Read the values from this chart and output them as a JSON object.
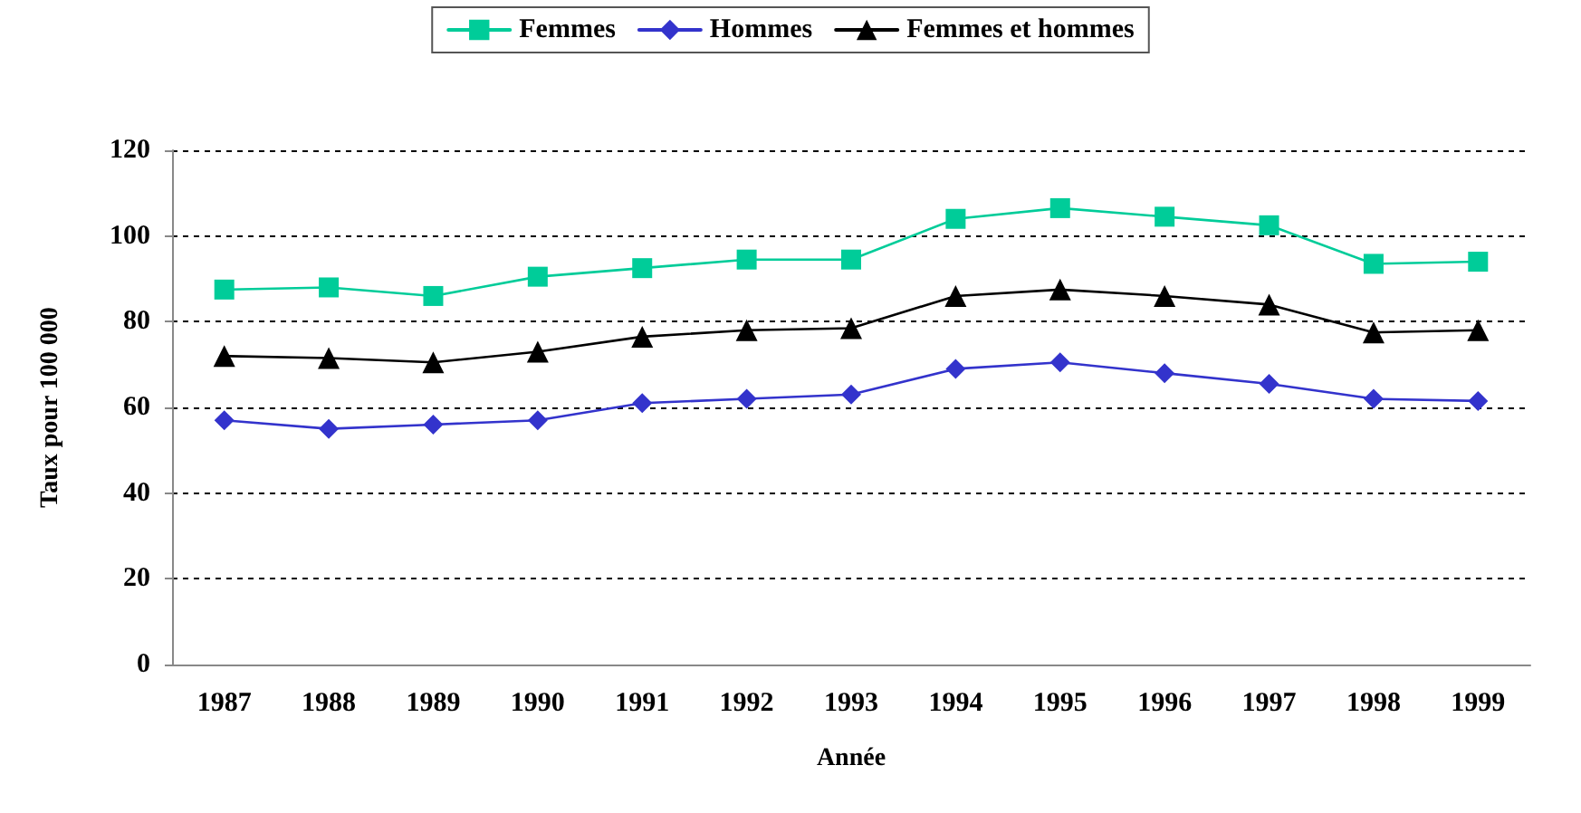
{
  "chart_data": {
    "type": "line",
    "xlabel": "Année",
    "ylabel": "Taux pour 100 000",
    "categories": [
      "1987",
      "1988",
      "1989",
      "1990",
      "1991",
      "1992",
      "1993",
      "1994",
      "1995",
      "1996",
      "1997",
      "1998",
      "1999"
    ],
    "series": [
      {
        "name": "Femmes",
        "color": "#00cc99",
        "marker": "square",
        "values": [
          87.5,
          88,
          86,
          90.5,
          92.5,
          94.5,
          94.5,
          104,
          106.5,
          104.5,
          102.5,
          93.5,
          94
        ]
      },
      {
        "name": "Hommes",
        "color": "#3333cc",
        "marker": "diamond",
        "values": [
          57,
          55,
          56,
          57,
          61,
          62,
          63,
          69,
          70.5,
          68,
          65.5,
          62,
          61.5
        ]
      },
      {
        "name": "Femmes et hommes",
        "color": "#000000",
        "marker": "triangle",
        "values": [
          72,
          71.5,
          70.5,
          73,
          76.5,
          78,
          78.5,
          86,
          87.5,
          86,
          84,
          77.5,
          78
        ]
      }
    ],
    "ylim": [
      0,
      120
    ],
    "yticks": [
      0,
      20,
      40,
      60,
      80,
      100,
      120
    ],
    "grid": "y",
    "legend": "top",
    "line_style": "solid"
  }
}
